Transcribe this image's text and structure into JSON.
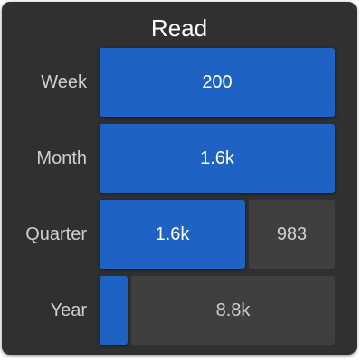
{
  "card": {
    "title": "Read"
  },
  "rows": [
    {
      "label": "Week",
      "done": 200,
      "done_text": "200",
      "remaining": 0,
      "remaining_text": ""
    },
    {
      "label": "Month",
      "done": 1600,
      "done_text": "1.6k",
      "remaining": 0,
      "remaining_text": ""
    },
    {
      "label": "Quarter",
      "done": 1600,
      "done_text": "1.6k",
      "remaining": 983,
      "remaining_text": "983"
    },
    {
      "label": "Year",
      "done": 1200,
      "done_text": "",
      "remaining": 8800,
      "remaining_text": "8.8k"
    }
  ],
  "colors": {
    "progress": "#1e62c4",
    "remaining": "#3f3f3f",
    "card_background": "#303030"
  }
}
